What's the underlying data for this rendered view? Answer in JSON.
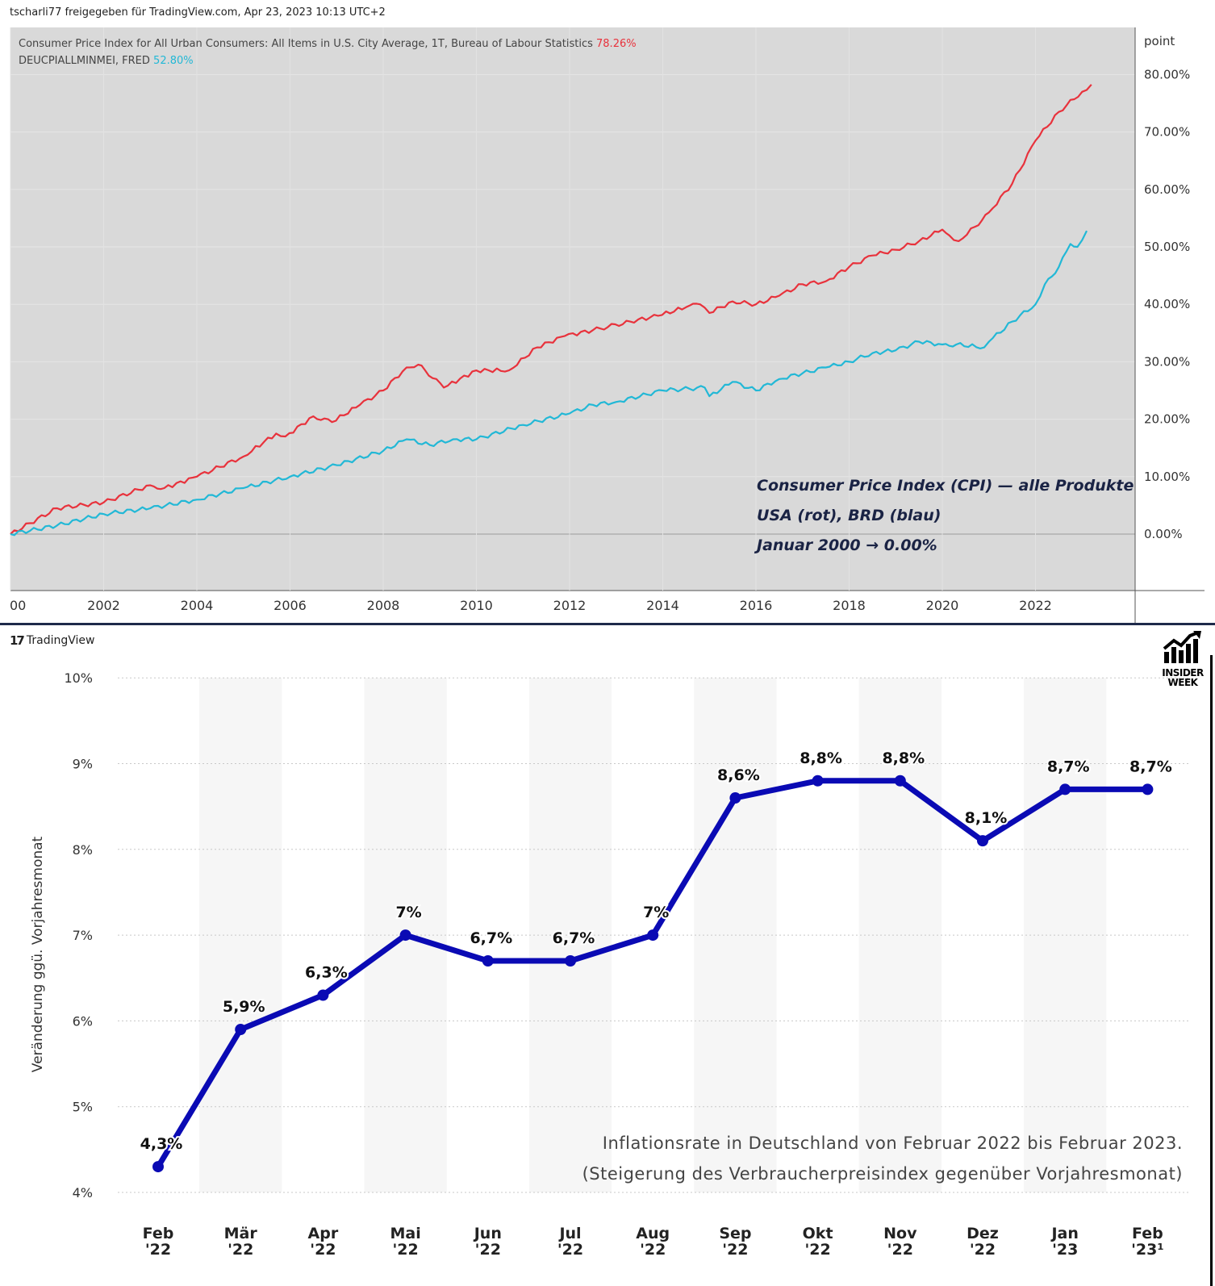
{
  "header": {
    "shared_by": "tscharli77 freigegeben für TradingView.com, Apr 23, 2023 10:13 UTC+2"
  },
  "brand": {
    "tradingview_label": "TradingView",
    "insider_label_1": "INSIDER",
    "insider_label_2": "WEEK"
  },
  "chart_data": [
    {
      "type": "line",
      "y_axis_title": "point",
      "ylim": [
        -10,
        85
      ],
      "y_ticks": [
        "80.00%",
        "70.00%",
        "60.00%",
        "50.00%",
        "40.00%",
        "30.00%",
        "20.00%",
        "10.00%",
        "0.00%"
      ],
      "x_ticks": [
        "00",
        "2002",
        "2004",
        "2006",
        "2008",
        "2010",
        "2012",
        "2014",
        "2016",
        "2018",
        "2020",
        "2022"
      ],
      "series": [
        {
          "name": "Consumer Price Index for All Urban Consumers: All Items in U.S. City Average, 1T, Bureau of Labour Statistics",
          "last_value": "78.26%",
          "color": "#e8323c",
          "x": [
            2000.0,
            2001.0,
            2002.0,
            2003.0,
            2003.3,
            2004.0,
            2005.0,
            2005.7,
            2005.9,
            2006.5,
            2006.9,
            2007.5,
            2008.0,
            2008.5,
            2008.75,
            2008.9,
            2009.3,
            2010.0,
            2010.7,
            2011.3,
            2011.9,
            2012.5,
            2013.3,
            2013.9,
            2014.5,
            2014.8,
            2015.0,
            2015.5,
            2016.0,
            2016.5,
            2017.0,
            2017.5,
            2018.0,
            2018.5,
            2019.0,
            2019.5,
            2020.0,
            2020.15,
            2020.35,
            2020.7,
            2021.0,
            2021.5,
            2022.0,
            2022.5,
            2023.0,
            2023.2
          ],
          "y": [
            0.0,
            4.5,
            5.5,
            8.5,
            8.0,
            10.0,
            13.5,
            17.5,
            17.0,
            20.5,
            19.5,
            22.5,
            25.0,
            29.0,
            29.5,
            28.5,
            25.5,
            28.5,
            28.5,
            32.5,
            34.5,
            35.5,
            37.0,
            38.0,
            39.5,
            40.0,
            38.5,
            40.5,
            40.0,
            41.5,
            43.5,
            44.0,
            46.5,
            48.5,
            49.5,
            51.0,
            53.0,
            52.0,
            51.0,
            53.5,
            56.0,
            61.0,
            68.5,
            73.5,
            77.0,
            78.26
          ]
        },
        {
          "name": "DEUCPIALLMINMEI, FRED",
          "last_value": "52.80%",
          "color": "#22b8d6",
          "x": [
            2000.0,
            2001.0,
            2002.0,
            2003.0,
            2004.0,
            2005.0,
            2006.0,
            2007.0,
            2008.0,
            2008.5,
            2009.0,
            2009.5,
            2010.0,
            2011.0,
            2012.0,
            2012.5,
            2013.0,
            2014.0,
            2014.9,
            2015.0,
            2015.5,
            2016.0,
            2016.5,
            2017.0,
            2017.5,
            2018.0,
            2018.5,
            2019.0,
            2019.5,
            2020.0,
            2020.3,
            2020.9,
            2021.0,
            2021.5,
            2022.0,
            2022.2,
            2022.5,
            2022.75,
            2022.9,
            2023.1
          ],
          "y": [
            0.0,
            1.5,
            3.5,
            4.5,
            6.0,
            8.0,
            10.0,
            12.0,
            14.5,
            16.5,
            15.5,
            16.5,
            16.5,
            19.0,
            21.0,
            22.5,
            23.0,
            25.0,
            25.5,
            24.0,
            26.5,
            25.0,
            27.0,
            28.0,
            29.0,
            30.0,
            31.5,
            32.0,
            33.5,
            33.0,
            33.0,
            32.5,
            33.5,
            37.0,
            40.0,
            43.5,
            46.5,
            50.5,
            50.0,
            52.8
          ]
        }
      ],
      "annotation": [
        "Consumer Price Index (CPI) — alle Produkte",
        "USA (rot), BRD (blau)",
        "Januar 2000 → 0.00%"
      ]
    },
    {
      "type": "line",
      "ylabel": "Veränderung ggü. Vorjahresmonat",
      "ylim": [
        4,
        10
      ],
      "y_ticks": [
        "4%",
        "5%",
        "6%",
        "7%",
        "8%",
        "9%",
        "10%"
      ],
      "categories": [
        [
          "Feb",
          "'22"
        ],
        [
          "Mär",
          "'22"
        ],
        [
          "Apr",
          "'22"
        ],
        [
          "Mai",
          "'22"
        ],
        [
          "Jun",
          "'22"
        ],
        [
          "Jul",
          "'22"
        ],
        [
          "Aug",
          "'22"
        ],
        [
          "Sep",
          "'22"
        ],
        [
          "Okt",
          "'22"
        ],
        [
          "Nov",
          "'22"
        ],
        [
          "Dez",
          "'22"
        ],
        [
          "Jan",
          "'23"
        ],
        [
          "Feb",
          "'23¹"
        ]
      ],
      "values": [
        4.3,
        5.9,
        6.3,
        7.0,
        6.7,
        6.7,
        7.0,
        8.6,
        8.8,
        8.8,
        8.1,
        8.7,
        8.7
      ],
      "data_labels": [
        "4,3%",
        "5,9%",
        "6,3%",
        "7%",
        "6,7%",
        "6,7%",
        "7%",
        "8,6%",
        "8,8%",
        "8,8%",
        "8,1%",
        "8,7%",
        "8,7%"
      ],
      "color": "#0a0ab4",
      "title_lines": [
        "Inflationsrate in Deutschland von Februar 2022 bis Februar 2023.",
        "(Steigerung des Verbraucherpreisindex gegenüber Vorjahresmonat)"
      ]
    }
  ]
}
